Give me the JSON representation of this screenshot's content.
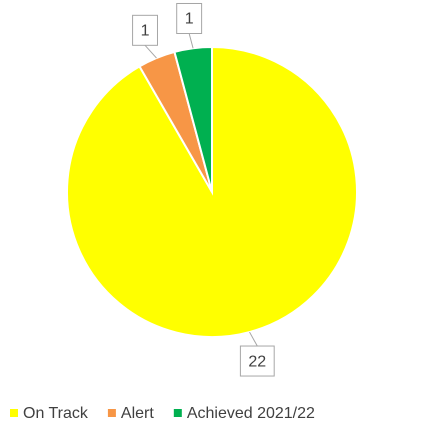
{
  "chart_data": {
    "type": "pie",
    "categories": [
      "On Track",
      "Alert",
      "Achieved 2021/22"
    ],
    "values": [
      22,
      1,
      1
    ],
    "colors": [
      "#FFFF00",
      "#F79646",
      "#00B050"
    ],
    "legend": "bottom"
  }
}
